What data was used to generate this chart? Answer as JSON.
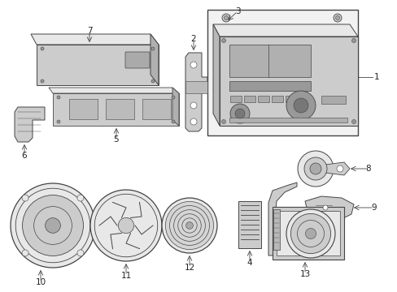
{
  "bg_color": "#ffffff",
  "line_color": "#444444",
  "fill_light": "#e8e8e8",
  "fill_mid": "#cccccc",
  "fill_dark": "#aaaaaa",
  "fill_box": "#f0f0f0"
}
